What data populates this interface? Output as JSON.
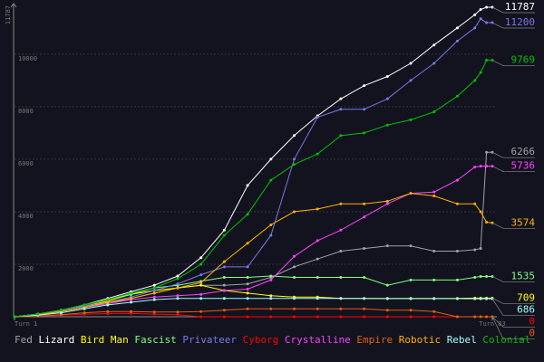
{
  "chart_data": {
    "type": "line",
    "x": [
      1,
      5,
      9,
      13,
      17,
      21,
      25,
      29,
      33,
      37,
      41,
      45,
      49,
      53,
      57,
      61,
      65,
      69,
      73,
      77,
      80,
      81,
      82,
      83
    ],
    "xlim": [
      1,
      83
    ],
    "xticks": [
      {
        "value": 1,
        "label": "Turn 1"
      },
      {
        "value": 83,
        "label": "Turn 83"
      }
    ],
    "ylim": [
      0,
      11787
    ],
    "yticks": [
      2000,
      4000,
      6000,
      8000,
      10000
    ],
    "grid": true,
    "series": [
      {
        "name": "Fed",
        "color": "#a0a0a8",
        "values": [
          0,
          80,
          200,
          350,
          500,
          700,
          900,
          1100,
          1200,
          1200,
          1250,
          1500,
          1900,
          2200,
          2500,
          2600,
          2700,
          2700,
          2500,
          2500,
          2550,
          2600,
          6266,
          6266
        ]
      },
      {
        "name": "Lizard",
        "color": "#ffffff",
        "values": [
          0,
          100,
          240,
          450,
          700,
          950,
          1200,
          1550,
          2250,
          3300,
          5000,
          6000,
          6900,
          7650,
          8300,
          8800,
          9150,
          9650,
          10350,
          11000,
          11500,
          11700,
          11787,
          11787
        ]
      },
      {
        "name": "Bird Man",
        "color": "#ffff00",
        "values": [
          0,
          100,
          250,
          400,
          600,
          850,
          1000,
          1100,
          1200,
          1000,
          900,
          800,
          750,
          750,
          700,
          700,
          700,
          700,
          700,
          700,
          709,
          709,
          709,
          709
        ]
      },
      {
        "name": "Fascist",
        "color": "#80ff80",
        "values": [
          0,
          100,
          250,
          450,
          650,
          850,
          1100,
          1200,
          1350,
          1500,
          1500,
          1550,
          1500,
          1500,
          1500,
          1500,
          1200,
          1400,
          1400,
          1400,
          1500,
          1535,
          1535,
          1535
        ]
      },
      {
        "name": "Privateer",
        "color": "#7878e8",
        "values": [
          0,
          100,
          250,
          400,
          550,
          750,
          1000,
          1250,
          1600,
          1900,
          1900,
          3100,
          6000,
          7600,
          7900,
          7900,
          8300,
          9000,
          9650,
          10500,
          11000,
          11350,
          11200,
          11200
        ]
      },
      {
        "name": "Cyborg",
        "color": "#ff0000",
        "values": [
          0,
          20,
          60,
          100,
          120,
          130,
          100,
          80,
          0,
          0,
          0,
          0,
          0,
          0,
          0,
          0,
          0,
          0,
          0,
          0,
          0,
          0,
          0,
          0
        ]
      },
      {
        "name": "Crystalline",
        "color": "#ff40ff",
        "values": [
          0,
          80,
          200,
          350,
          500,
          650,
          750,
          800,
          850,
          1000,
          1050,
          1400,
          2300,
          2900,
          3300,
          3800,
          4300,
          4700,
          4750,
          5200,
          5700,
          5736,
          5736,
          5736
        ]
      },
      {
        "name": "Empire",
        "color": "#e06010",
        "values": [
          0,
          30,
          80,
          150,
          200,
          200,
          180,
          180,
          200,
          250,
          300,
          300,
          300,
          300,
          300,
          300,
          250,
          250,
          200,
          0,
          0,
          0,
          0,
          0
        ]
      },
      {
        "name": "Robotic",
        "color": "#ffb000",
        "values": [
          0,
          80,
          200,
          350,
          550,
          700,
          900,
          1100,
          1300,
          2100,
          2800,
          3500,
          4000,
          4100,
          4300,
          4300,
          4400,
          4700,
          4600,
          4300,
          4300,
          4000,
          3600,
          3574
        ]
      },
      {
        "name": "Rebel",
        "color": "#a0ffff",
        "values": [
          0,
          60,
          150,
          300,
          450,
          550,
          650,
          700,
          700,
          700,
          700,
          700,
          700,
          700,
          700,
          700,
          690,
          690,
          690,
          690,
          686,
          686,
          686,
          686
        ]
      },
      {
        "name": "Colonial",
        "color": "#00c000",
        "values": [
          0,
          100,
          250,
          450,
          650,
          900,
          1100,
          1450,
          2000,
          3100,
          3900,
          5200,
          5800,
          6200,
          6900,
          7000,
          7300,
          7500,
          7800,
          8400,
          9000,
          9300,
          9769,
          9769
        ]
      }
    ]
  }
}
